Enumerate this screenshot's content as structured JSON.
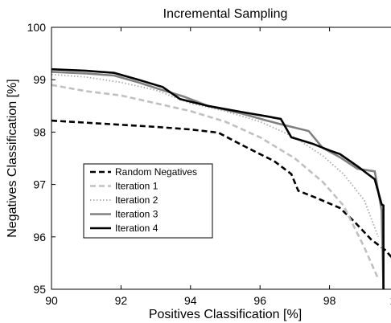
{
  "chart_data": {
    "type": "line",
    "title": "Incremental Sampling",
    "xlabel": "Positives Classification [%]",
    "ylabel": "Negatives Classification [%]",
    "xlim": [
      90,
      100
    ],
    "ylim": [
      95,
      100
    ],
    "xticks": [
      90,
      92,
      94,
      96,
      98,
      100
    ],
    "yticks": [
      95,
      96,
      97,
      98,
      99,
      100
    ],
    "grid": false,
    "legend_position": "left",
    "series": [
      {
        "name": "Random Negatives",
        "color": "#000000",
        "dash": "dashed",
        "x": [
          90.0,
          91.0,
          92.0,
          93.0,
          94.0,
          94.8,
          95.4,
          96.0,
          96.4,
          96.9,
          97.1,
          97.6,
          98.3,
          98.7,
          99.2,
          99.6,
          99.8
        ],
        "y": [
          98.22,
          98.18,
          98.14,
          98.1,
          98.05,
          97.99,
          97.78,
          97.58,
          97.45,
          97.2,
          96.88,
          96.75,
          96.55,
          96.3,
          95.95,
          95.75,
          95.6
        ]
      },
      {
        "name": "Iteration 1",
        "color": "#c0c0c0",
        "dash": "dashed",
        "x": [
          90.0,
          91.0,
          92.0,
          93.0,
          94.0,
          95.0,
          96.0,
          97.0,
          97.8,
          98.4,
          99.0,
          99.4
        ],
        "y": [
          98.9,
          98.78,
          98.7,
          98.55,
          98.4,
          98.2,
          97.9,
          97.5,
          97.05,
          96.6,
          95.8,
          95.2
        ]
      },
      {
        "name": "Iteration 2",
        "color": "#aaaaaa",
        "dash": "dotted",
        "x": [
          90.0,
          91.0,
          92.0,
          93.0,
          94.0,
          95.0,
          96.0,
          97.0,
          97.8,
          98.4,
          99.0,
          99.4
        ],
        "y": [
          99.1,
          99.05,
          98.95,
          98.8,
          98.55,
          98.4,
          98.2,
          97.9,
          97.55,
          97.2,
          96.7,
          96.0
        ]
      },
      {
        "name": "Iteration 3",
        "color": "#808080",
        "dash": "solid",
        "x": [
          90.0,
          91.0,
          91.8,
          92.5,
          93.2,
          93.8,
          94.5,
          95.5,
          96.2,
          96.6,
          97.4,
          97.8,
          98.3,
          98.8,
          99.3,
          99.5,
          99.55
        ],
        "y": [
          99.15,
          99.12,
          99.08,
          98.95,
          98.8,
          98.68,
          98.5,
          98.35,
          98.22,
          98.15,
          98.02,
          97.7,
          97.52,
          97.3,
          97.25,
          96.5,
          95.0
        ]
      },
      {
        "name": "Iteration 4",
        "color": "#000000",
        "dash": "solid",
        "x": [
          90.0,
          91.0,
          91.8,
          92.5,
          93.2,
          93.7,
          94.5,
          95.5,
          96.2,
          96.6,
          96.9,
          97.5,
          98.0,
          98.3,
          98.8,
          99.3,
          99.5,
          99.55,
          99.55
        ],
        "y": [
          99.2,
          99.17,
          99.13,
          99.0,
          98.86,
          98.63,
          98.5,
          98.38,
          98.3,
          98.25,
          97.9,
          97.78,
          97.65,
          97.58,
          97.35,
          97.1,
          96.62,
          96.6,
          95.0
        ]
      }
    ]
  }
}
